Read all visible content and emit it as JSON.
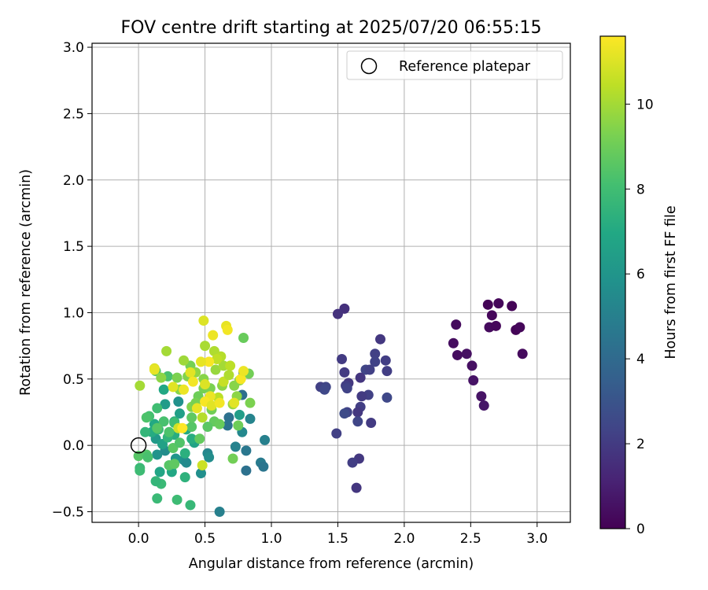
{
  "chart_data": {
    "type": "scatter",
    "title": "FOV centre drift starting at 2025/07/20 06:55:15",
    "xlabel": "Angular distance from reference (arcmin)",
    "ylabel": "Rotation from reference (arcmin)",
    "xlim": [
      -0.35,
      3.25
    ],
    "ylim": [
      -0.58,
      3.03
    ],
    "x_ticks": [
      0.0,
      0.5,
      1.0,
      1.5,
      2.0,
      2.5,
      3.0
    ],
    "y_ticks": [
      -0.5,
      0.0,
      0.5,
      1.0,
      1.5,
      2.0,
      2.5,
      3.0
    ],
    "grid": true,
    "legend": {
      "position": "upper right",
      "entries": [
        "Reference platepar"
      ]
    },
    "reference_point": {
      "x": 0.0,
      "y": 0.0,
      "label": "Reference platepar"
    },
    "colorbar": {
      "label": "Hours from first FF file",
      "range": [
        0,
        11.6
      ],
      "ticks": [
        0,
        2,
        4,
        6,
        8,
        10
      ],
      "colormap": "viridis"
    },
    "points": [
      {
        "x": 2.63,
        "y": 1.06,
        "h": 0.1
      },
      {
        "x": 2.71,
        "y": 1.07,
        "h": 0.2
      },
      {
        "x": 2.81,
        "y": 1.05,
        "h": 0.1
      },
      {
        "x": 2.66,
        "y": 0.98,
        "h": 0.2
      },
      {
        "x": 2.64,
        "y": 0.89,
        "h": 0.3
      },
      {
        "x": 2.69,
        "y": 0.9,
        "h": 0.2
      },
      {
        "x": 2.84,
        "y": 0.87,
        "h": 0.1
      },
      {
        "x": 2.87,
        "y": 0.89,
        "h": 0.2
      },
      {
        "x": 2.89,
        "y": 0.69,
        "h": 0.3
      },
      {
        "x": 2.39,
        "y": 0.91,
        "h": 0.3
      },
      {
        "x": 2.37,
        "y": 0.77,
        "h": 0.4
      },
      {
        "x": 2.4,
        "y": 0.68,
        "h": 0.4
      },
      {
        "x": 2.47,
        "y": 0.69,
        "h": 0.5
      },
      {
        "x": 2.51,
        "y": 0.6,
        "h": 0.5
      },
      {
        "x": 2.52,
        "y": 0.49,
        "h": 0.6
      },
      {
        "x": 2.58,
        "y": 0.37,
        "h": 0.6
      },
      {
        "x": 2.6,
        "y": 0.3,
        "h": 0.7
      },
      {
        "x": 1.55,
        "y": 1.03,
        "h": 1.6
      },
      {
        "x": 1.5,
        "y": 0.99,
        "h": 1.7
      },
      {
        "x": 1.82,
        "y": 0.8,
        "h": 1.9
      },
      {
        "x": 1.53,
        "y": 0.65,
        "h": 2.0
      },
      {
        "x": 1.86,
        "y": 0.64,
        "h": 2.1
      },
      {
        "x": 1.78,
        "y": 0.69,
        "h": 2.2
      },
      {
        "x": 1.78,
        "y": 0.63,
        "h": 2.3
      },
      {
        "x": 1.71,
        "y": 0.57,
        "h": 2.4
      },
      {
        "x": 1.74,
        "y": 0.57,
        "h": 2.2
      },
      {
        "x": 1.87,
        "y": 0.56,
        "h": 2.1
      },
      {
        "x": 1.55,
        "y": 0.55,
        "h": 2.0
      },
      {
        "x": 1.67,
        "y": 0.51,
        "h": 1.8
      },
      {
        "x": 1.58,
        "y": 0.47,
        "h": 1.9
      },
      {
        "x": 1.56,
        "y": 0.45,
        "h": 2.1
      },
      {
        "x": 1.57,
        "y": 0.43,
        "h": 2.3
      },
      {
        "x": 1.37,
        "y": 0.44,
        "h": 2.2
      },
      {
        "x": 1.41,
        "y": 0.44,
        "h": 2.4
      },
      {
        "x": 1.4,
        "y": 0.42,
        "h": 2.5
      },
      {
        "x": 1.73,
        "y": 0.38,
        "h": 2.2
      },
      {
        "x": 1.68,
        "y": 0.37,
        "h": 2.0
      },
      {
        "x": 1.87,
        "y": 0.36,
        "h": 2.5
      },
      {
        "x": 1.67,
        "y": 0.29,
        "h": 2.1
      },
      {
        "x": 1.65,
        "y": 0.25,
        "h": 1.9
      },
      {
        "x": 1.57,
        "y": 0.25,
        "h": 2.3
      },
      {
        "x": 1.55,
        "y": 0.24,
        "h": 2.6
      },
      {
        "x": 1.65,
        "y": 0.18,
        "h": 2.4
      },
      {
        "x": 1.75,
        "y": 0.17,
        "h": 2.0
      },
      {
        "x": 1.49,
        "y": 0.09,
        "h": 2.2
      },
      {
        "x": 1.66,
        "y": -0.1,
        "h": 1.9
      },
      {
        "x": 1.61,
        "y": -0.13,
        "h": 2.1
      },
      {
        "x": 1.64,
        "y": -0.32,
        "h": 1.8
      },
      {
        "x": 0.79,
        "y": 0.55,
        "h": 4.6
      },
      {
        "x": 0.78,
        "y": 0.38,
        "h": 4.2
      },
      {
        "x": 0.68,
        "y": 0.21,
        "h": 4.3
      },
      {
        "x": 0.67,
        "y": 0.15,
        "h": 4.4
      },
      {
        "x": 0.84,
        "y": 0.2,
        "h": 5.2
      },
      {
        "x": 0.78,
        "y": 0.1,
        "h": 5.4
      },
      {
        "x": 0.95,
        "y": 0.04,
        "h": 5.0
      },
      {
        "x": 0.73,
        "y": -0.01,
        "h": 5.1
      },
      {
        "x": 0.81,
        "y": -0.04,
        "h": 4.6
      },
      {
        "x": 0.92,
        "y": -0.13,
        "h": 4.8
      },
      {
        "x": 0.94,
        "y": -0.16,
        "h": 4.5
      },
      {
        "x": 0.81,
        "y": -0.19,
        "h": 4.3
      },
      {
        "x": 0.61,
        "y": -0.5,
        "h": 5.0
      },
      {
        "x": 0.52,
        "y": -0.06,
        "h": 5.3
      },
      {
        "x": 0.53,
        "y": -0.09,
        "h": 5.6
      },
      {
        "x": 0.34,
        "y": -0.11,
        "h": 5.8
      },
      {
        "x": 0.36,
        "y": -0.13,
        "h": 5.5
      },
      {
        "x": 0.47,
        "y": -0.21,
        "h": 5.7
      },
      {
        "x": 0.28,
        "y": -0.1,
        "h": 6.0
      },
      {
        "x": 0.14,
        "y": -0.07,
        "h": 5.9
      },
      {
        "x": 0.2,
        "y": -0.04,
        "h": 5.6
      },
      {
        "x": 0.13,
        "y": 0.05,
        "h": 6.2
      },
      {
        "x": 0.3,
        "y": 0.33,
        "h": 5.8
      },
      {
        "x": 0.2,
        "y": 0.31,
        "h": 6.3
      },
      {
        "x": 0.76,
        "y": 0.23,
        "h": 6.4
      },
      {
        "x": 0.31,
        "y": 0.24,
        "h": 6.5
      },
      {
        "x": 0.18,
        "y": 0.01,
        "h": 6.6
      },
      {
        "x": 0.42,
        "y": 0.02,
        "h": 6.7
      },
      {
        "x": 0.16,
        "y": -0.2,
        "h": 6.8
      },
      {
        "x": 0.25,
        "y": -0.2,
        "h": 6.9
      },
      {
        "x": 0.12,
        "y": 0.16,
        "h": 7.0
      },
      {
        "x": 0.1,
        "y": 0.1,
        "h": 7.1
      },
      {
        "x": 0.27,
        "y": 0.08,
        "h": 7.2
      },
      {
        "x": 0.35,
        "y": -0.06,
        "h": 7.3
      },
      {
        "x": 0.27,
        "y": 0.18,
        "h": 7.4
      },
      {
        "x": 0.36,
        "y": 0.12,
        "h": 7.0
      },
      {
        "x": 0.19,
        "y": 0.42,
        "h": 6.9
      },
      {
        "x": 0.4,
        "y": 0.05,
        "h": 7.2
      },
      {
        "x": 0.22,
        "y": 0.06,
        "h": 7.5
      },
      {
        "x": 0.05,
        "y": 0.1,
        "h": 7.6
      },
      {
        "x": 0.15,
        "y": 0.12,
        "h": 7.7
      },
      {
        "x": 0.01,
        "y": -0.17,
        "h": 7.8
      },
      {
        "x": 0.01,
        "y": -0.19,
        "h": 7.9
      },
      {
        "x": 0.17,
        "y": -0.29,
        "h": 7.8
      },
      {
        "x": 0.13,
        "y": -0.27,
        "h": 7.6
      },
      {
        "x": 0.35,
        "y": -0.24,
        "h": 7.4
      },
      {
        "x": 0.14,
        "y": -0.4,
        "h": 7.8
      },
      {
        "x": 0.29,
        "y": -0.41,
        "h": 7.9
      },
      {
        "x": 0.39,
        "y": -0.45,
        "h": 7.7
      },
      {
        "x": 0.27,
        "y": 0.17,
        "h": 8.0
      },
      {
        "x": 0.08,
        "y": 0.22,
        "h": 8.1
      },
      {
        "x": 0.19,
        "y": 0.18,
        "h": 8.2
      },
      {
        "x": 0.06,
        "y": 0.21,
        "h": 8.3
      },
      {
        "x": 0.14,
        "y": 0.28,
        "h": 8.0
      },
      {
        "x": 0.13,
        "y": 0.56,
        "h": 8.4
      },
      {
        "x": 0.22,
        "y": 0.52,
        "h": 8.2
      },
      {
        "x": 0.14,
        "y": 0.13,
        "h": 8.5
      },
      {
        "x": 0.23,
        "y": 0.1,
        "h": 8.3
      },
      {
        "x": 0.0,
        "y": -0.08,
        "h": 8.5
      },
      {
        "x": 0.06,
        "y": -0.07,
        "h": 8.4
      },
      {
        "x": 0.07,
        "y": -0.09,
        "h": 8.2
      },
      {
        "x": 0.26,
        "y": -0.02,
        "h": 8.6
      },
      {
        "x": 0.31,
        "y": 0.02,
        "h": 8.4
      },
      {
        "x": 0.23,
        "y": -0.15,
        "h": 8.5
      },
      {
        "x": 0.27,
        "y": -0.14,
        "h": 8.7
      },
      {
        "x": 0.57,
        "y": 0.18,
        "h": 8.8
      },
      {
        "x": 0.61,
        "y": 0.16,
        "h": 8.9
      },
      {
        "x": 0.52,
        "y": 0.14,
        "h": 8.6
      },
      {
        "x": 0.4,
        "y": 0.14,
        "h": 8.5
      },
      {
        "x": 0.46,
        "y": 0.05,
        "h": 8.8
      },
      {
        "x": 0.4,
        "y": 0.21,
        "h": 8.7
      },
      {
        "x": 0.75,
        "y": 0.15,
        "h": 9.0
      },
      {
        "x": 0.71,
        "y": -0.1,
        "h": 9.1
      },
      {
        "x": 0.49,
        "y": 0.43,
        "h": 9.2
      },
      {
        "x": 0.45,
        "y": 0.37,
        "h": 9.0
      },
      {
        "x": 0.54,
        "y": 0.43,
        "h": 9.3
      },
      {
        "x": 0.55,
        "y": 0.27,
        "h": 9.1
      },
      {
        "x": 0.4,
        "y": 0.29,
        "h": 9.4
      },
      {
        "x": 0.43,
        "y": 0.32,
        "h": 9.2
      },
      {
        "x": 0.29,
        "y": 0.51,
        "h": 9.3
      },
      {
        "x": 0.37,
        "y": 0.52,
        "h": 9.4
      },
      {
        "x": 0.31,
        "y": 0.42,
        "h": 9.5
      },
      {
        "x": 0.39,
        "y": 0.6,
        "h": 9.2
      },
      {
        "x": 0.49,
        "y": 0.5,
        "h": 9.5
      },
      {
        "x": 0.63,
        "y": 0.45,
        "h": 9.6
      },
      {
        "x": 0.76,
        "y": 0.49,
        "h": 9.7
      },
      {
        "x": 0.72,
        "y": 0.45,
        "h": 9.5
      },
      {
        "x": 0.83,
        "y": 0.54,
        "h": 9.1
      },
      {
        "x": 0.84,
        "y": 0.32,
        "h": 9.3
      },
      {
        "x": 0.79,
        "y": 0.81,
        "h": 8.9
      },
      {
        "x": 0.74,
        "y": 0.37,
        "h": 9.6
      },
      {
        "x": 0.71,
        "y": 0.31,
        "h": 9.8
      },
      {
        "x": 0.43,
        "y": 0.55,
        "h": 9.7
      },
      {
        "x": 0.58,
        "y": 0.57,
        "h": 9.8
      },
      {
        "x": 0.34,
        "y": 0.64,
        "h": 9.9
      },
      {
        "x": 0.21,
        "y": 0.71,
        "h": 10.0
      },
      {
        "x": 0.17,
        "y": 0.51,
        "h": 9.6
      },
      {
        "x": 0.5,
        "y": 0.75,
        "h": 10.1
      },
      {
        "x": 0.57,
        "y": 0.71,
        "h": 10.2
      },
      {
        "x": 0.62,
        "y": 0.67,
        "h": 10.3
      },
      {
        "x": 0.64,
        "y": 0.6,
        "h": 10.0
      },
      {
        "x": 0.69,
        "y": 0.6,
        "h": 10.4
      },
      {
        "x": 0.59,
        "y": 0.65,
        "h": 10.5
      },
      {
        "x": 0.64,
        "y": 0.48,
        "h": 10.6
      },
      {
        "x": 0.68,
        "y": 0.53,
        "h": 10.2
      },
      {
        "x": 0.48,
        "y": 0.21,
        "h": 10.3
      },
      {
        "x": 0.6,
        "y": 0.36,
        "h": 10.4
      },
      {
        "x": 0.48,
        "y": -0.15,
        "h": 10.7
      },
      {
        "x": 0.3,
        "y": 0.13,
        "h": 10.8
      },
      {
        "x": 0.01,
        "y": 0.45,
        "h": 10.0
      },
      {
        "x": 0.12,
        "y": 0.58,
        "h": 11.0
      },
      {
        "x": 0.12,
        "y": 0.57,
        "h": 11.2
      },
      {
        "x": 0.26,
        "y": 0.44,
        "h": 11.1
      },
      {
        "x": 0.34,
        "y": 0.42,
        "h": 11.3
      },
      {
        "x": 0.49,
        "y": 0.94,
        "h": 11.0
      },
      {
        "x": 0.66,
        "y": 0.9,
        "h": 11.2
      },
      {
        "x": 0.67,
        "y": 0.87,
        "h": 11.4
      },
      {
        "x": 0.56,
        "y": 0.83,
        "h": 11.3
      },
      {
        "x": 0.53,
        "y": 0.63,
        "h": 11.5
      },
      {
        "x": 0.47,
        "y": 0.63,
        "h": 11.2
      },
      {
        "x": 0.39,
        "y": 0.55,
        "h": 11.1
      },
      {
        "x": 0.41,
        "y": 0.48,
        "h": 11.4
      },
      {
        "x": 0.5,
        "y": 0.46,
        "h": 11.0
      },
      {
        "x": 0.54,
        "y": 0.37,
        "h": 11.3
      },
      {
        "x": 0.5,
        "y": 0.33,
        "h": 11.5
      },
      {
        "x": 0.55,
        "y": 0.3,
        "h": 11.1
      },
      {
        "x": 0.61,
        "y": 0.32,
        "h": 11.4
      },
      {
        "x": 0.44,
        "y": 0.28,
        "h": 11.2
      },
      {
        "x": 0.77,
        "y": 0.5,
        "h": 11.5
      },
      {
        "x": 0.79,
        "y": 0.56,
        "h": 11.3
      },
      {
        "x": 0.72,
        "y": 0.32,
        "h": 11.1
      },
      {
        "x": 0.33,
        "y": 0.13,
        "h": 11.6
      }
    ]
  }
}
